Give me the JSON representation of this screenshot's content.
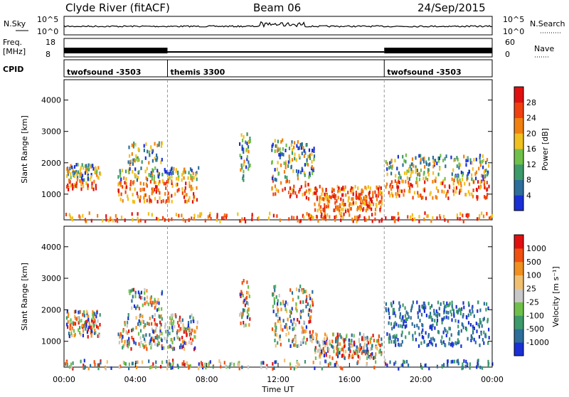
{
  "header": {
    "station": "Clyde River (fitACF)",
    "beam": "Beam 06",
    "date": "24/Sep/2015"
  },
  "colors": {
    "power": [
      "#1a2fd6",
      "#2d6e9a",
      "#3d9a6a",
      "#6fc04a",
      "#f0c020",
      "#f08010",
      "#f04010",
      "#e01010"
    ],
    "velocity": [
      "#e01010",
      "#f05010",
      "#f09020",
      "#f0c070",
      "#c8c8c8",
      "#6fc04a",
      "#3d9a6a",
      "#2d6e9a",
      "#1a2fd6"
    ]
  },
  "chart_data": [
    {
      "panel": "nsky_nsearch",
      "type": "line",
      "left_label": "N.Sky",
      "right_label": "N.Search",
      "left_ticks": [
        "10^5",
        "10^0"
      ],
      "right_ticks": [
        "10^5",
        "10^0"
      ]
    },
    {
      "panel": "freq_nave",
      "type": "line",
      "left_label": "Freq.",
      "left_unit": "[MHz]",
      "right_label": "Nave",
      "left_ticks": [
        "18",
        "8"
      ],
      "right_ticks": [
        "60",
        "0"
      ],
      "freq_segments": [
        {
          "start_hr": 0,
          "end_hr": 5.8,
          "level": "high"
        },
        {
          "start_hr": 5.8,
          "end_hr": 17.95,
          "level": "low"
        },
        {
          "start_hr": 17.95,
          "end_hr": 24,
          "level": "high"
        }
      ]
    },
    {
      "panel": "cpid",
      "type": "table",
      "label": "CPID",
      "modes": [
        {
          "name": "twofsound -3503",
          "start_hr": 0
        },
        {
          "name": "themis 3300",
          "start_hr": 5.8
        },
        {
          "name": "twofsound -3503",
          "start_hr": 17.95
        }
      ]
    },
    {
      "panel": "power",
      "type": "heatmap",
      "ylabel": "Slant Range [km]",
      "yticks": [
        1000,
        2000,
        3000,
        4000
      ],
      "ylim": [
        180,
        4650
      ],
      "xlim": [
        0,
        24
      ],
      "colorbar_label": "Power [dB]",
      "colorbar_ticks": [
        "4",
        "8",
        "12",
        "16",
        "20",
        "24",
        "28"
      ]
    },
    {
      "panel": "velocity",
      "type": "heatmap",
      "ylabel": "Slant Range [km]",
      "yticks": [
        1000,
        2000,
        3000,
        4000
      ],
      "ylim": [
        180,
        4650
      ],
      "xlim": [
        0,
        24
      ],
      "xlabel": "Time UT",
      "xticks": [
        "00:00",
        "04:00",
        "08:00",
        "12:00",
        "16:00",
        "20:00",
        "00:00"
      ],
      "colorbar_label": "Velocity [m s⁻¹]",
      "colorbar_ticks": [
        "1000",
        "500",
        "100",
        "25",
        "-25",
        "-100",
        "-500",
        "-1000"
      ]
    }
  ]
}
